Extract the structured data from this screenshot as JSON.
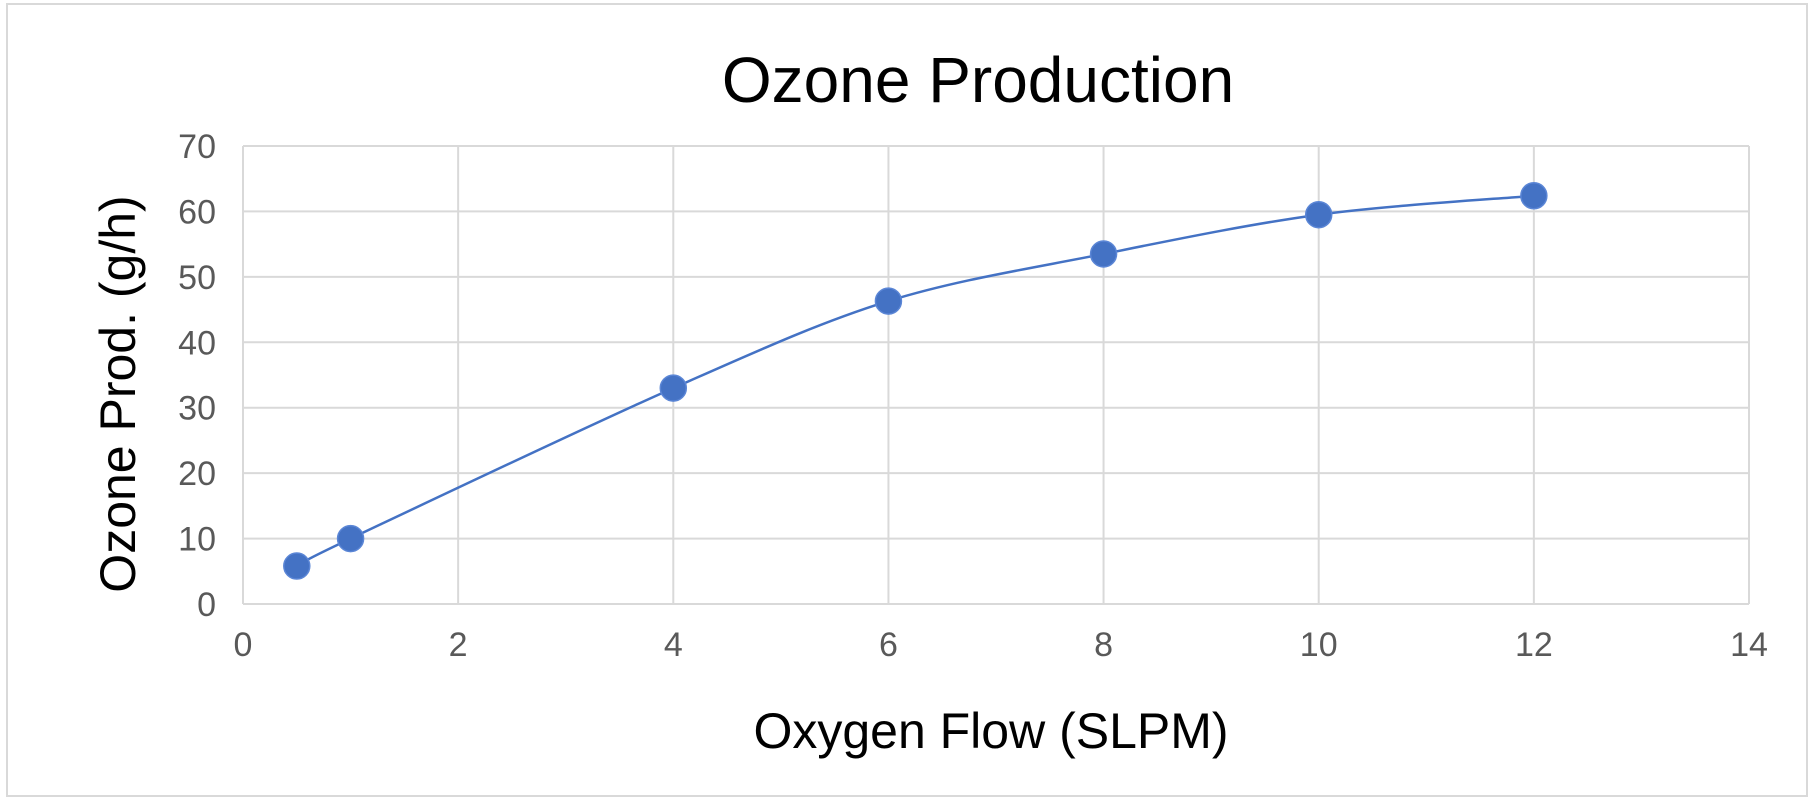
{
  "chart_data": {
    "type": "scatter",
    "title": "Ozone Production",
    "xlabel": "Oxygen Flow (SLPM)",
    "ylabel": "Ozone Prod. (g/h)",
    "xlim": [
      0,
      14
    ],
    "ylim": [
      0,
      70
    ],
    "x_ticks": [
      0,
      2,
      4,
      6,
      8,
      10,
      12,
      14
    ],
    "y_ticks": [
      0,
      10,
      20,
      30,
      40,
      50,
      60,
      70
    ],
    "grid": true,
    "legend": "none",
    "line_style": "smooth-with-markers",
    "series": [
      {
        "color": "#4472c4",
        "points": [
          {
            "x": 0.5,
            "y": 5.8
          },
          {
            "x": 1,
            "y": 10
          },
          {
            "x": 4,
            "y": 33
          },
          {
            "x": 6,
            "y": 46.3
          },
          {
            "x": 8,
            "y": 53.5
          },
          {
            "x": 10,
            "y": 59.5
          },
          {
            "x": 12,
            "y": 62.4
          }
        ]
      }
    ]
  }
}
